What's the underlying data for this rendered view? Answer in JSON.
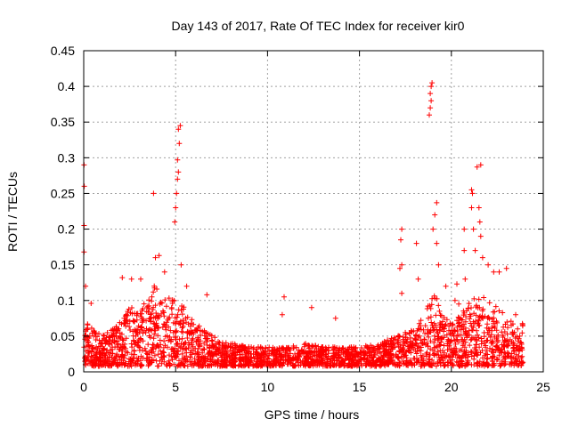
{
  "chart_data": {
    "type": "scatter",
    "title": "Day 143 of 2017, Rate Of TEC Index for receiver kir0",
    "xlabel": "GPS time / hours",
    "ylabel": "ROTI / TECUs",
    "xlim": [
      0,
      25
    ],
    "ylim": [
      0,
      0.45
    ],
    "x_ticks": [
      0,
      5,
      10,
      15,
      20,
      25
    ],
    "x_tick_labels": [
      "0",
      "5",
      "10",
      "15",
      "20",
      "25"
    ],
    "y_ticks": [
      0,
      0.05,
      0.1,
      0.15,
      0.2,
      0.25,
      0.3,
      0.35,
      0.4,
      0.45
    ],
    "y_tick_labels": [
      "0",
      "0.05",
      "0.1",
      "0.15",
      "0.2",
      "0.25",
      "0.3",
      "0.35",
      "0.4",
      "0.45"
    ],
    "grid": true,
    "marker": "+",
    "color": "#ff0000",
    "baseline_envelope": [
      {
        "x": 0.0,
        "ymax": 0.08
      },
      {
        "x": 0.5,
        "ymax": 0.06
      },
      {
        "x": 1.0,
        "ymax": 0.05
      },
      {
        "x": 1.5,
        "ymax": 0.06
      },
      {
        "x": 2.0,
        "ymax": 0.07
      },
      {
        "x": 2.5,
        "ymax": 0.09
      },
      {
        "x": 3.0,
        "ymax": 0.09
      },
      {
        "x": 3.5,
        "ymax": 0.1
      },
      {
        "x": 4.0,
        "ymax": 0.13
      },
      {
        "x": 4.5,
        "ymax": 0.11
      },
      {
        "x": 5.0,
        "ymax": 0.1
      },
      {
        "x": 5.5,
        "ymax": 0.09
      },
      {
        "x": 6.0,
        "ymax": 0.07
      },
      {
        "x": 6.5,
        "ymax": 0.06
      },
      {
        "x": 7.0,
        "ymax": 0.05
      },
      {
        "x": 8.0,
        "ymax": 0.04
      },
      {
        "x": 9.0,
        "ymax": 0.035
      },
      {
        "x": 10.0,
        "ymax": 0.035
      },
      {
        "x": 11.0,
        "ymax": 0.035
      },
      {
        "x": 12.0,
        "ymax": 0.04
      },
      {
        "x": 13.0,
        "ymax": 0.035
      },
      {
        "x": 14.0,
        "ymax": 0.035
      },
      {
        "x": 15.0,
        "ymax": 0.035
      },
      {
        "x": 16.0,
        "ymax": 0.04
      },
      {
        "x": 17.0,
        "ymax": 0.05
      },
      {
        "x": 18.0,
        "ymax": 0.06
      },
      {
        "x": 18.5,
        "ymax": 0.08
      },
      {
        "x": 19.0,
        "ymax": 0.12
      },
      {
        "x": 19.5,
        "ymax": 0.08
      },
      {
        "x": 20.0,
        "ymax": 0.07
      },
      {
        "x": 20.5,
        "ymax": 0.08
      },
      {
        "x": 21.0,
        "ymax": 0.1
      },
      {
        "x": 21.5,
        "ymax": 0.11
      },
      {
        "x": 22.0,
        "ymax": 0.1
      },
      {
        "x": 22.5,
        "ymax": 0.09
      },
      {
        "x": 23.0,
        "ymax": 0.08
      },
      {
        "x": 23.5,
        "ymax": 0.07
      },
      {
        "x": 23.9,
        "ymax": 0.07
      }
    ],
    "notable_points": [
      {
        "x": 0.02,
        "y": 0.29
      },
      {
        "x": 0.03,
        "y": 0.26
      },
      {
        "x": 0.02,
        "y": 0.205
      },
      {
        "x": 0.02,
        "y": 0.168
      },
      {
        "x": 0.1,
        "y": 0.12
      },
      {
        "x": 0.4,
        "y": 0.096
      },
      {
        "x": 2.1,
        "y": 0.132
      },
      {
        "x": 2.6,
        "y": 0.13
      },
      {
        "x": 3.1,
        "y": 0.13
      },
      {
        "x": 3.8,
        "y": 0.25
      },
      {
        "x": 3.9,
        "y": 0.16
      },
      {
        "x": 4.1,
        "y": 0.163
      },
      {
        "x": 4.4,
        "y": 0.14
      },
      {
        "x": 4.95,
        "y": 0.21
      },
      {
        "x": 5.0,
        "y": 0.23
      },
      {
        "x": 5.05,
        "y": 0.25
      },
      {
        "x": 5.1,
        "y": 0.27
      },
      {
        "x": 5.15,
        "y": 0.28
      },
      {
        "x": 5.1,
        "y": 0.297
      },
      {
        "x": 5.2,
        "y": 0.32
      },
      {
        "x": 5.15,
        "y": 0.34
      },
      {
        "x": 5.25,
        "y": 0.345
      },
      {
        "x": 5.3,
        "y": 0.15
      },
      {
        "x": 5.6,
        "y": 0.12
      },
      {
        "x": 6.7,
        "y": 0.108
      },
      {
        "x": 10.9,
        "y": 0.105
      },
      {
        "x": 10.8,
        "y": 0.08
      },
      {
        "x": 12.4,
        "y": 0.09
      },
      {
        "x": 13.7,
        "y": 0.075
      },
      {
        "x": 17.3,
        "y": 0.2
      },
      {
        "x": 17.25,
        "y": 0.185
      },
      {
        "x": 17.3,
        "y": 0.15
      },
      {
        "x": 17.2,
        "y": 0.145
      },
      {
        "x": 17.3,
        "y": 0.11
      },
      {
        "x": 18.1,
        "y": 0.18
      },
      {
        "x": 18.2,
        "y": 0.13
      },
      {
        "x": 18.8,
        "y": 0.36
      },
      {
        "x": 18.85,
        "y": 0.37
      },
      {
        "x": 18.9,
        "y": 0.38
      },
      {
        "x": 18.85,
        "y": 0.39
      },
      {
        "x": 18.9,
        "y": 0.4
      },
      {
        "x": 18.95,
        "y": 0.405
      },
      {
        "x": 19.0,
        "y": 0.2
      },
      {
        "x": 19.1,
        "y": 0.22
      },
      {
        "x": 19.2,
        "y": 0.237
      },
      {
        "x": 19.2,
        "y": 0.18
      },
      {
        "x": 19.3,
        "y": 0.15
      },
      {
        "x": 19.7,
        "y": 0.12
      },
      {
        "x": 20.2,
        "y": 0.1
      },
      {
        "x": 20.3,
        "y": 0.123
      },
      {
        "x": 20.4,
        "y": 0.095
      },
      {
        "x": 20.7,
        "y": 0.2
      },
      {
        "x": 20.7,
        "y": 0.17
      },
      {
        "x": 20.75,
        "y": 0.13
      },
      {
        "x": 21.1,
        "y": 0.255
      },
      {
        "x": 21.15,
        "y": 0.25
      },
      {
        "x": 21.1,
        "y": 0.23
      },
      {
        "x": 21.2,
        "y": 0.2
      },
      {
        "x": 21.3,
        "y": 0.17
      },
      {
        "x": 21.4,
        "y": 0.287
      },
      {
        "x": 21.6,
        "y": 0.29
      },
      {
        "x": 21.5,
        "y": 0.23
      },
      {
        "x": 21.55,
        "y": 0.21
      },
      {
        "x": 21.6,
        "y": 0.19
      },
      {
        "x": 21.7,
        "y": 0.16
      },
      {
        "x": 22.0,
        "y": 0.15
      },
      {
        "x": 22.3,
        "y": 0.14
      },
      {
        "x": 22.6,
        "y": 0.14
      },
      {
        "x": 23.0,
        "y": 0.145
      },
      {
        "x": 23.5,
        "y": 0.08
      }
    ]
  }
}
